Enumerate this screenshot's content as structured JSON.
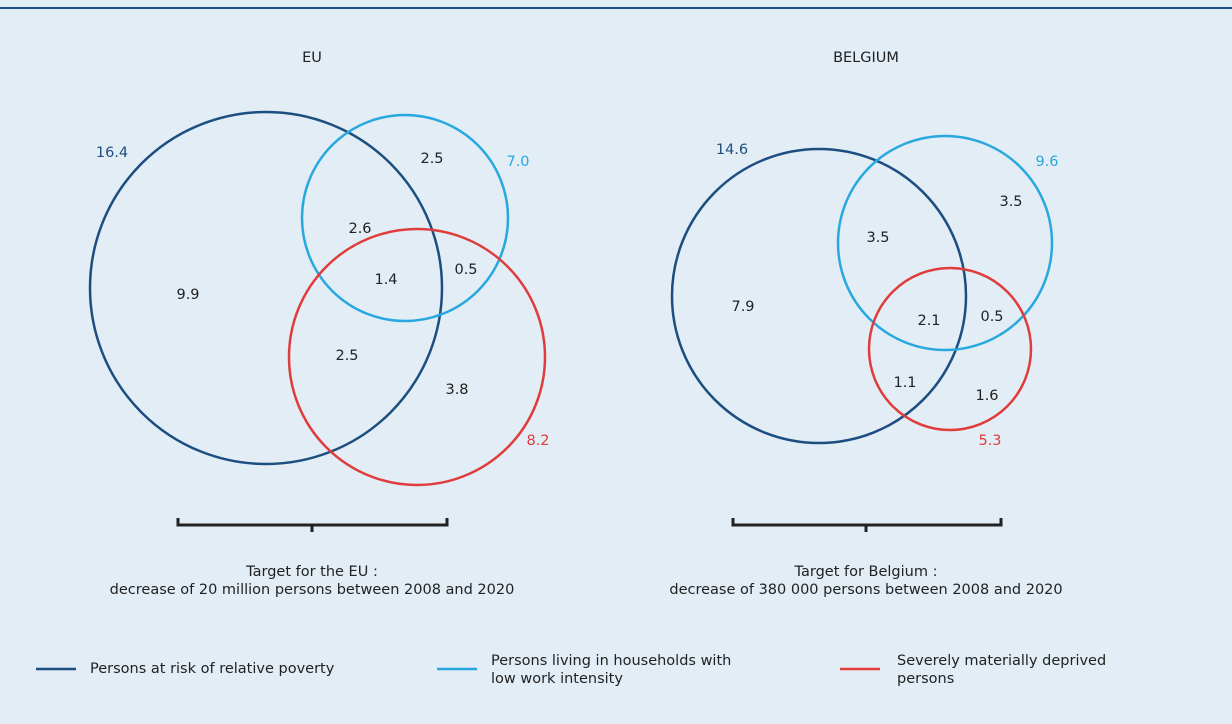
{
  "panels": [
    {
      "title": "EU",
      "set_totals": [
        "16.4",
        "7.0",
        "8.2"
      ],
      "regions": [
        "2.5",
        "2.6",
        "9.9",
        "1.4",
        "0.5",
        "2.5",
        "3.8"
      ],
      "target": [
        "Target for the EU :",
        "decrease of 20 million persons between 2008 and 2020"
      ]
    },
    {
      "title": "BELGIUM",
      "set_totals": [
        "14.6",
        "9.6",
        "5.3"
      ],
      "regions": [
        "3.5",
        "3.5",
        "7.9",
        "2.1",
        "0.5",
        "1.1",
        "1.6"
      ],
      "target": [
        "Target for Belgium :",
        "decrease of 380 000 persons between 2008 and 2020"
      ]
    }
  ],
  "legend": [
    [
      "Persons at risk of relative poverty"
    ],
    [
      "Persons living in households with",
      "low work intensity"
    ],
    [
      "Severely materially deprived",
      "persons"
    ]
  ]
}
